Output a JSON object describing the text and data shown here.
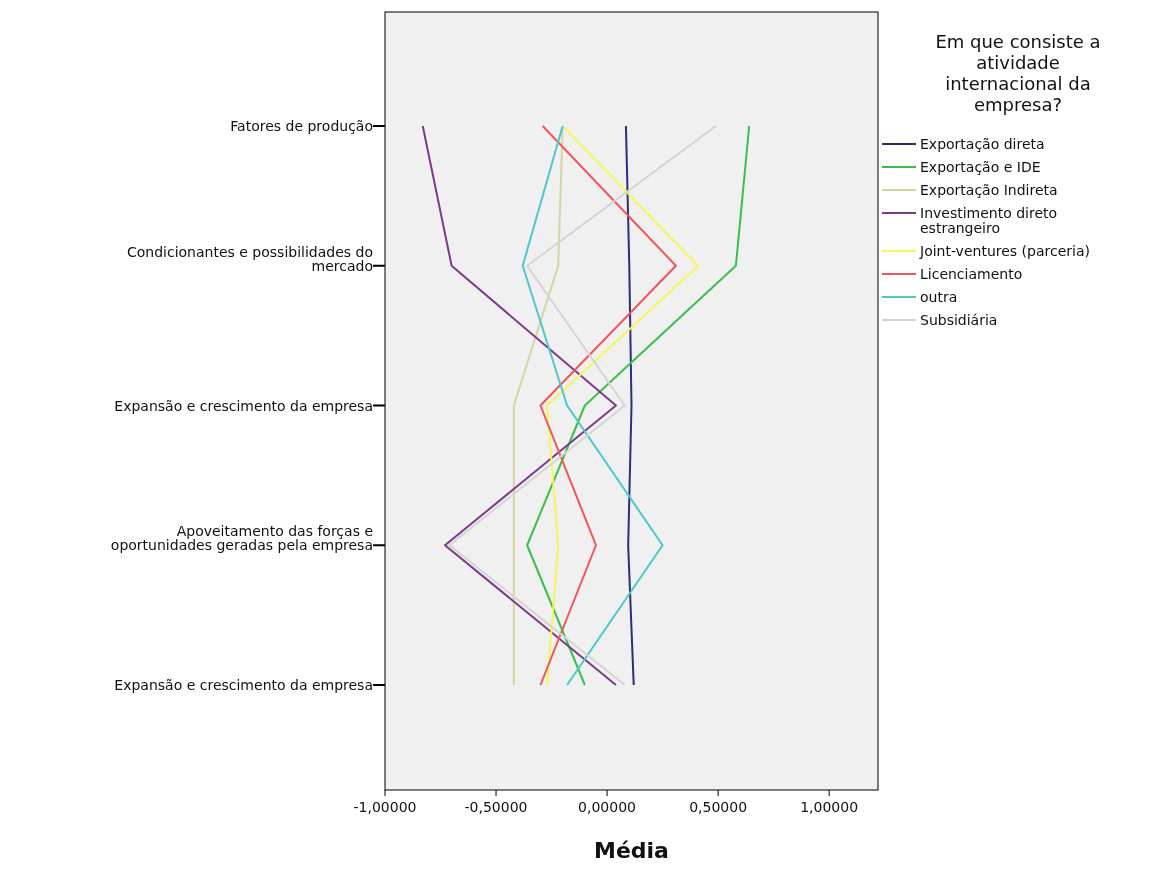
{
  "chart_data": {
    "type": "line",
    "orientation": "horizontal",
    "xlabel": "Média",
    "legend_title": "Em que consiste a atividade internacional da empresa?",
    "legend": "right",
    "grid": false,
    "marker": "none",
    "categories": [
      "Fatores de produção",
      "Condicionantes e possibilidades do mercado",
      "Expansão e crescimento da empresa",
      "Apoveitamento das forças e oportunidades geradas pela empresa",
      "Expansão e crescimento da empresa"
    ],
    "xlim": [
      -1,
      1.22
    ],
    "xticks": [
      {
        "value": -1,
        "label": "-1,00000"
      },
      {
        "value": -0.5,
        "label": "-0,50000"
      },
      {
        "value": 0,
        "label": "0,00000"
      },
      {
        "value": 0.5,
        "label": "0,50000"
      },
      {
        "value": 1,
        "label": "1,00000"
      }
    ],
    "series": [
      {
        "name": "Exportação direta",
        "color": "#2b2f7a",
        "values": [
          0.085,
          0.1,
          0.11,
          0.095,
          0.12
        ]
      },
      {
        "name": "Exportação e IDE",
        "color": "#3cbf4a",
        "values": [
          0.64,
          0.58,
          -0.1,
          -0.36,
          -0.1
        ]
      },
      {
        "name": "Exportação Indireta",
        "color": "#d8d4a0",
        "values": [
          -0.2,
          -0.22,
          -0.42,
          -0.42,
          -0.42
        ]
      },
      {
        "name": "Investimento direto estrangeiro",
        "color": "#7b3a8e",
        "values": [
          -0.83,
          -0.7,
          0.04,
          -0.73,
          0.04
        ]
      },
      {
        "name": "Joint-ventures (parceria)",
        "color": "#f6f65a",
        "values": [
          -0.2,
          0.41,
          -0.27,
          -0.22,
          -0.27
        ]
      },
      {
        "name": "Licenciamento",
        "color": "#f2545a",
        "values": [
          -0.29,
          0.31,
          -0.3,
          -0.05,
          -0.3
        ]
      },
      {
        "name": "outra",
        "color": "#4cc8cc",
        "values": [
          -0.2,
          -0.38,
          -0.18,
          0.25,
          -0.18
        ]
      },
      {
        "name": "Subsidiária",
        "color": "#d4d4d4",
        "values": [
          0.49,
          -0.36,
          0.08,
          -0.71,
          0.08
        ]
      }
    ]
  }
}
